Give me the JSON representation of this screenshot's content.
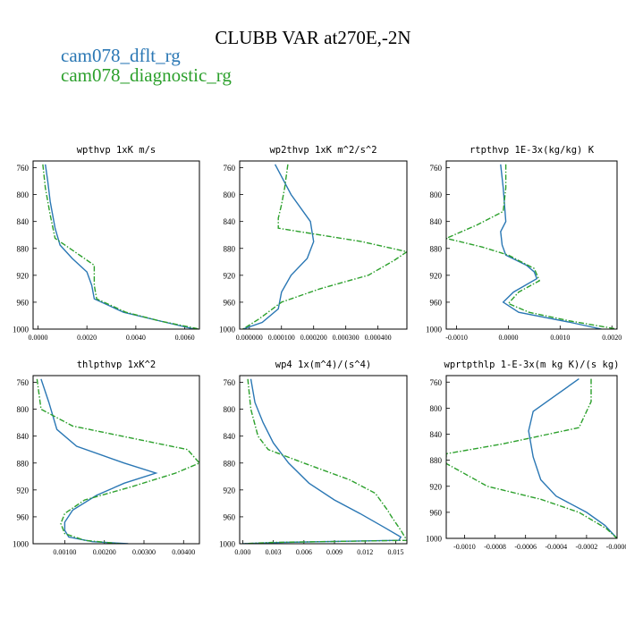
{
  "title": "CLUBB VAR at270E,-2N",
  "legend": [
    {
      "label": "cam078_dflt_rg",
      "color": "#2a77b4",
      "dash": "solid"
    },
    {
      "label": "cam078_diagnostic_rg",
      "color": "#2ca02c",
      "dash": "dashdot"
    }
  ],
  "chart_data": [
    {
      "type": "line",
      "title": "wpthvp   1xK m/s",
      "xlim": [
        -0.0002,
        0.0066
      ],
      "ylim": [
        1000,
        750
      ],
      "xticks": [
        0.0,
        0.002,
        0.004,
        0.006
      ],
      "xtick_labels": [
        "0.0000",
        "0.0020",
        "0.0040",
        "0.0060"
      ],
      "yticks": [
        760,
        800,
        840,
        880,
        920,
        960,
        1000
      ],
      "series": [
        {
          "name": "cam078_dflt_rg",
          "color": "#2a77b4",
          "points": [
            [
              0.0003,
              755
            ],
            [
              0.0004,
              780
            ],
            [
              0.0005,
              810
            ],
            [
              0.0007,
              850
            ],
            [
              0.0009,
              875
            ],
            [
              0.0014,
              895
            ],
            [
              0.002,
              915
            ],
            [
              0.0022,
              935
            ],
            [
              0.0023,
              955
            ],
            [
              0.0035,
              975
            ],
            [
              0.005,
              988
            ],
            [
              0.0064,
              1000
            ]
          ]
        },
        {
          "name": "cam078_diagnostic_rg",
          "color": "#2ca02c",
          "points": [
            [
              0.0002,
              755
            ],
            [
              0.0003,
              790
            ],
            [
              0.0005,
              830
            ],
            [
              0.0007,
              865
            ],
            [
              0.0015,
              885
            ],
            [
              0.0023,
              905
            ],
            [
              0.0023,
              935
            ],
            [
              0.0024,
              955
            ],
            [
              0.0036,
              975
            ],
            [
              0.005,
              988
            ],
            [
              0.0066,
              1000
            ]
          ]
        }
      ]
    },
    {
      "type": "line",
      "title": "wp2thvp   1xK m^2/s^2",
      "xlim": [
        -3e-05,
        0.00049
      ],
      "ylim": [
        1000,
        750
      ],
      "xticks": [
        0.0,
        0.0001,
        0.0002,
        0.0003,
        0.0004
      ],
      "xtick_labels": [
        "0.000000",
        "0.000100",
        "0.000200",
        "0.000300",
        "0.000400"
      ],
      "yticks": [
        760,
        800,
        840,
        880,
        920,
        960,
        1000
      ],
      "series": [
        {
          "name": "cam078_dflt_rg",
          "color": "#2a77b4",
          "points": [
            [
              8e-05,
              755
            ],
            [
              0.00013,
              800
            ],
            [
              0.00019,
              840
            ],
            [
              0.0002,
              870
            ],
            [
              0.00018,
              895
            ],
            [
              0.00013,
              920
            ],
            [
              0.0001,
              945
            ],
            [
              9e-05,
              970
            ],
            [
              4e-05,
              990
            ],
            [
              -2e-05,
              1000
            ]
          ]
        },
        {
          "name": "cam078_diagnostic_rg",
          "color": "#2ca02c",
          "points": [
            [
              0.00012,
              755
            ],
            [
              0.00011,
              790
            ],
            [
              0.0001,
              815
            ],
            [
              9e-05,
              835
            ],
            [
              9e-05,
              850
            ],
            [
              0.00035,
              870
            ],
            [
              0.00049,
              885
            ],
            [
              0.00045,
              898
            ],
            [
              0.00037,
              920
            ],
            [
              0.00022,
              940
            ],
            [
              0.0001,
              960
            ],
            [
              3e-05,
              985
            ],
            [
              -2e-05,
              1000
            ]
          ]
        }
      ]
    },
    {
      "type": "line",
      "title": "rtpthvp   1E-3x(kg/kg) K",
      "xlim": [
        -0.0012,
        0.0021
      ],
      "ylim": [
        1000,
        750
      ],
      "xticks": [
        -0.001,
        0.0,
        0.001,
        0.002
      ],
      "xtick_labels": [
        "-0.0010",
        "0.0000",
        "0.0010",
        "0.0020"
      ],
      "yticks": [
        760,
        800,
        840,
        880,
        920,
        960,
        1000
      ],
      "series": [
        {
          "name": "cam078_dflt_rg",
          "color": "#2a77b4",
          "points": [
            [
              -0.00015,
              755
            ],
            [
              -0.0001,
              790
            ],
            [
              -5e-05,
              840
            ],
            [
              -0.00015,
              855
            ],
            [
              -0.00012,
              875
            ],
            [
              -5e-05,
              890
            ],
            [
              0.00035,
              905
            ],
            [
              0.0005,
              915
            ],
            [
              0.00055,
              925
            ],
            [
              0.0001,
              945
            ],
            [
              -0.0001,
              960
            ],
            [
              0.0002,
              975
            ],
            [
              0.0012,
              990
            ],
            [
              0.0018,
              1000
            ]
          ]
        },
        {
          "name": "cam078_diagnostic_rg",
          "color": "#2ca02c",
          "points": [
            [
              -5e-05,
              755
            ],
            [
              -5e-05,
              790
            ],
            [
              -0.0001,
              825
            ],
            [
              -0.0006,
              845
            ],
            [
              -0.0012,
              865
            ],
            [
              -0.0005,
              878
            ],
            [
              0.0,
              890
            ],
            [
              0.0005,
              910
            ],
            [
              0.0006,
              928
            ],
            [
              0.0002,
              945
            ],
            [
              0.0,
              962
            ],
            [
              0.0004,
              975
            ],
            [
              0.0012,
              988
            ],
            [
              0.0021,
              1000
            ]
          ]
        }
      ]
    },
    {
      "type": "line",
      "title": "thlpthvp   1xK^2",
      "xlim": [
        0.0002,
        0.0044
      ],
      "ylim": [
        1000,
        750
      ],
      "xticks": [
        0.001,
        0.002,
        0.003,
        0.004
      ],
      "xtick_labels": [
        "0.00100",
        "0.00200",
        "0.00300",
        "0.00400"
      ],
      "yticks": [
        760,
        800,
        840,
        880,
        920,
        960,
        1000
      ],
      "series": [
        {
          "name": "cam078_dflt_rg",
          "color": "#2a77b4",
          "points": [
            [
              0.0004,
              755
            ],
            [
              0.0006,
              790
            ],
            [
              0.0008,
              830
            ],
            [
              0.0013,
              855
            ],
            [
              0.0025,
              880
            ],
            [
              0.0033,
              895
            ],
            [
              0.0025,
              910
            ],
            [
              0.0018,
              928
            ],
            [
              0.0012,
              950
            ],
            [
              0.001,
              968
            ],
            [
              0.001,
              980
            ],
            [
              0.0011,
              990
            ],
            [
              0.0017,
              997
            ],
            [
              0.0026,
              1000
            ]
          ]
        },
        {
          "name": "cam078_diagnostic_rg",
          "color": "#2ca02c",
          "points": [
            [
              0.0003,
              755
            ],
            [
              0.0004,
              800
            ],
            [
              0.0012,
              825
            ],
            [
              0.0041,
              860
            ],
            [
              0.0044,
              880
            ],
            [
              0.0038,
              895
            ],
            [
              0.0027,
              915
            ],
            [
              0.0015,
              935
            ],
            [
              0.001,
              955
            ],
            [
              0.0009,
              970
            ],
            [
              0.001,
              985
            ],
            [
              0.0015,
              995
            ],
            [
              0.0024,
              1000
            ]
          ]
        }
      ]
    },
    {
      "type": "line",
      "title": "wp4   1x(m^4)/(s^4)",
      "xlim": [
        -0.0003,
        0.0161
      ],
      "ylim": [
        1000,
        750
      ],
      "xticks": [
        0.0,
        0.003,
        0.006,
        0.009,
        0.012,
        0.015
      ],
      "xtick_labels": [
        "0.000",
        "0.003",
        "0.006",
        "0.009",
        "0.012",
        "0.015"
      ],
      "yticks": [
        760,
        800,
        840,
        880,
        920,
        960,
        1000
      ],
      "series": [
        {
          "name": "cam078_dflt_rg",
          "color": "#2a77b4",
          "points": [
            [
              0.0008,
              755
            ],
            [
              0.0012,
              790
            ],
            [
              0.002,
              820
            ],
            [
              0.003,
              850
            ],
            [
              0.0045,
              880
            ],
            [
              0.0065,
              910
            ],
            [
              0.009,
              935
            ],
            [
              0.0115,
              955
            ],
            [
              0.0138,
              975
            ],
            [
              0.0155,
              990
            ],
            [
              0.0153,
              995
            ],
            [
              0.004,
              998
            ],
            [
              0.0,
              1000
            ]
          ]
        },
        {
          "name": "cam078_diagnostic_rg",
          "color": "#2ca02c",
          "points": [
            [
              0.0005,
              755
            ],
            [
              0.0008,
              800
            ],
            [
              0.0015,
              840
            ],
            [
              0.0025,
              860
            ],
            [
              0.006,
              880
            ],
            [
              0.0105,
              905
            ],
            [
              0.013,
              925
            ],
            [
              0.0142,
              950
            ],
            [
              0.0146,
              960
            ],
            [
              0.0155,
              980
            ],
            [
              0.0161,
              995
            ],
            [
              0.003,
              998
            ],
            [
              0.0,
              1000
            ]
          ]
        }
      ]
    },
    {
      "type": "line",
      "title": "wprtpthlp   1-E-3x(m kg K)/(s kg)",
      "xlim": [
        -0.00112,
        0.0
      ],
      "ylim": [
        1000,
        750
      ],
      "xticks": [
        -0.001,
        -0.0008,
        -0.0006,
        -0.0004,
        -0.0002,
        0.0
      ],
      "xtick_labels": [
        "-0.0010",
        "-0.0008",
        "-0.0006",
        "-0.0004",
        "-0.0002",
        "-0.0000"
      ],
      "yticks": [
        760,
        800,
        840,
        880,
        920,
        960,
        1000
      ],
      "series": [
        {
          "name": "cam078_dflt_rg",
          "color": "#2a77b4",
          "points": [
            [
              -0.00025,
              755
            ],
            [
              -0.0004,
              780
            ],
            [
              -0.00055,
              805
            ],
            [
              -0.00058,
              835
            ],
            [
              -0.00055,
              875
            ],
            [
              -0.0005,
              910
            ],
            [
              -0.0004,
              935
            ],
            [
              -0.0002,
              960
            ],
            [
              -8e-05,
              980
            ],
            [
              -2e-05,
              995
            ],
            [
              0.0,
              1000
            ]
          ]
        },
        {
          "name": "cam078_diagnostic_rg",
          "color": "#2ca02c",
          "points": [
            [
              -0.00017,
              755
            ],
            [
              -0.00017,
              790
            ],
            [
              -0.00025,
              830
            ],
            [
              -0.00075,
              855
            ],
            [
              -0.00112,
              870
            ],
            [
              -0.00112,
              885
            ],
            [
              -0.00085,
              920
            ],
            [
              -0.0005,
              940
            ],
            [
              -0.00025,
              960
            ],
            [
              -7e-05,
              985
            ],
            [
              0.0,
              1000
            ]
          ]
        }
      ]
    }
  ]
}
